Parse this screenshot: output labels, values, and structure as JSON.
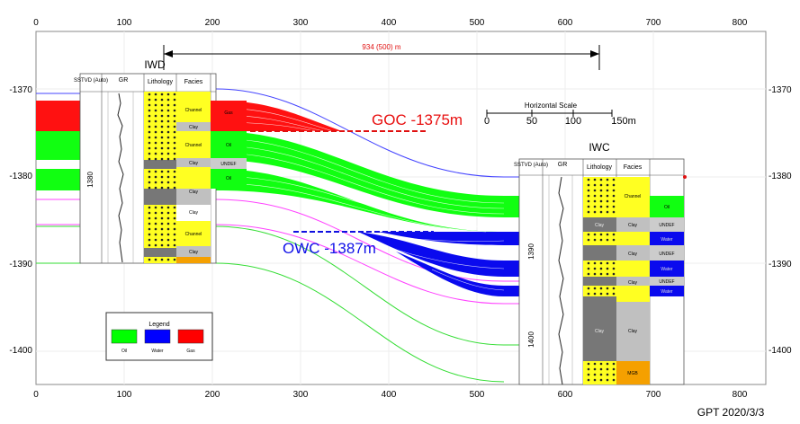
{
  "axes": {
    "x_ticks": [
      "0",
      "100",
      "200",
      "300",
      "400",
      "500",
      "600",
      "700",
      "800"
    ],
    "y_ticks": [
      "-1370",
      "-1380",
      "-1390",
      "-1400"
    ]
  },
  "distance_label": "934 (500) m",
  "wells": {
    "left": {
      "name": "IWD",
      "headers": [
        "SSTVD (Auto)",
        "GR",
        "Lithology",
        "Facies",
        ""
      ],
      "depth_label": "1380",
      "facies": [
        "Channel",
        "Clay",
        "Channel",
        "Clay",
        "Clay",
        "Clay",
        "Channel",
        "Clay"
      ],
      "fluids": [
        "Gas",
        "Oil",
        "UNDEF",
        "Oil"
      ]
    },
    "right": {
      "name": "IWC",
      "headers": [
        "SSTVD (Auto)",
        "GR",
        "Lithology",
        "Facies",
        ""
      ],
      "depth_labels": [
        "1390",
        "1400"
      ],
      "facies": [
        "Channel",
        "Clay",
        "Clay",
        "Clay",
        "Clay",
        "Clay",
        "Clay",
        "MGB"
      ],
      "fluids": [
        "Oil",
        "UNDEF",
        "Water",
        "UNDEF",
        "Water",
        "UNDEF",
        "Water"
      ]
    }
  },
  "contacts": {
    "goc": "GOC -1375m",
    "owc": "OWC -1387m"
  },
  "scale_bar": {
    "title": "Horizontal Scale",
    "ticks": [
      "0",
      "50",
      "100",
      "150m"
    ]
  },
  "legend": {
    "title": "Legend",
    "items": [
      {
        "label": "Oil",
        "color": "#00ff00"
      },
      {
        "label": "Water",
        "color": "#0000ff"
      },
      {
        "label": "Gas",
        "color": "#ff0000"
      }
    ]
  },
  "footer": "GPT 2020/3/3",
  "colors": {
    "oil": "#11ff11",
    "water": "#0a0aee",
    "gas": "#ff1111",
    "sand": "#ffff00",
    "clay_shale": "#808080"
  }
}
